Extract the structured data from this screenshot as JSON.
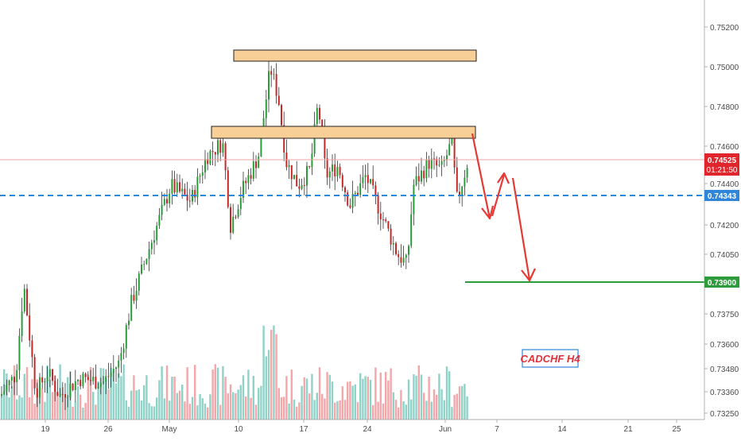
{
  "chart_data": {
    "type": "candlestick",
    "symbol_label": "CADCHF H4",
    "y_ticks": [
      "0.75200",
      "0.75000",
      "0.74800",
      "0.74600",
      "0.74400",
      "0.74200",
      "0.74050",
      "0.73750",
      "0.73600",
      "0.73480",
      "0.73360",
      "0.73250"
    ],
    "x_ticks": [
      "19",
      "26",
      "May",
      "10",
      "17",
      "24",
      "Jun",
      "7",
      "14",
      "21",
      "25"
    ],
    "price_tags": {
      "current": {
        "value": "0.74525",
        "countdown": "01:21:50",
        "color": "#e0262c"
      },
      "dashed_level": {
        "value": "0.74343",
        "color": "#2f86d9"
      },
      "target": {
        "value": "0.73900",
        "color": "#2e9b3c"
      }
    },
    "zones": [
      {
        "name": "upper-resistance",
        "top": 0.75085,
        "bottom": 0.75035
      },
      {
        "name": "lower-resistance",
        "top": 0.74675,
        "bottom": 0.74625
      }
    ],
    "colors": {
      "up": "#2a9d3a",
      "down": "#c62828",
      "zone_fill": "#f8cf96",
      "arrow": "#e53935",
      "vol_up": "#8fd3c8",
      "vol_down": "#f4a7ab"
    },
    "grid": false,
    "series_hint": "rise from lows to a double top near the upper zone, projected decline"
  }
}
